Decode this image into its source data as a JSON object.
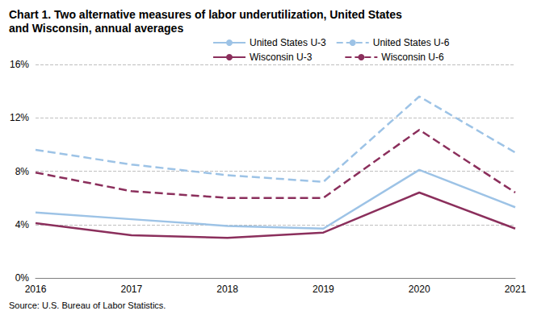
{
  "chart_data": {
    "type": "line",
    "title": "Chart 1. Two alternative measures of labor underutilization, United States and Wisconsin, annual averages",
    "annotations": [
      "Source: U.S. Bureau of Labor Statistics."
    ],
    "categories": [
      "2016",
      "2017",
      "2018",
      "2019",
      "2020",
      "2021"
    ],
    "series": [
      {
        "name": "United States U-3",
        "color": "#9dc3e6",
        "line_style": "solid",
        "values": [
          4.9,
          4.4,
          3.9,
          3.7,
          8.1,
          5.3
        ]
      },
      {
        "name": "United States U-6",
        "color": "#9dc3e6",
        "line_style": "dashed",
        "values": [
          9.6,
          8.5,
          7.7,
          7.2,
          13.6,
          9.4
        ]
      },
      {
        "name": "Wisconsin U-3",
        "color": "#8b2f5c",
        "line_style": "solid",
        "values": [
          4.1,
          3.2,
          3.0,
          3.4,
          6.4,
          3.7
        ]
      },
      {
        "name": "Wisconsin U-6",
        "color": "#8b2f5c",
        "line_style": "dashed",
        "values": [
          7.9,
          6.5,
          6.0,
          6.0,
          11.1,
          6.4
        ]
      }
    ],
    "ylim": [
      0,
      16
    ],
    "yticks": [
      {
        "value": 0,
        "label": "0%"
      },
      {
        "value": 4,
        "label": "4%"
      },
      {
        "value": 8,
        "label": "8%"
      },
      {
        "value": 12,
        "label": "12%"
      },
      {
        "value": 16,
        "label": "16%"
      }
    ],
    "grid": true,
    "legend": "top"
  }
}
